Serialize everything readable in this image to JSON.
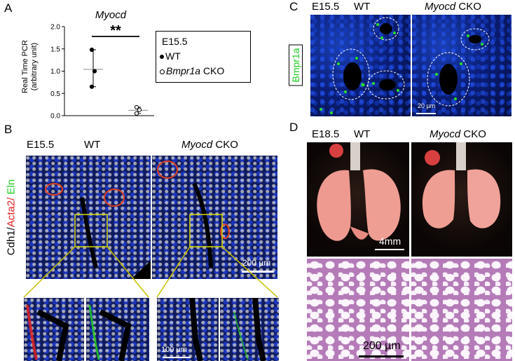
{
  "panels": {
    "A": {
      "letter": "A",
      "chart_data": {
        "type": "scatter",
        "title": "Myocd",
        "ylabel": "Real Time PCR\n(arbitrary unit)",
        "ylim": [
          0,
          2.0
        ],
        "yticks": [
          "0.0",
          "0.5",
          "1.0",
          "1.5",
          "2.0"
        ],
        "series": [
          {
            "name": "WT",
            "marker": "filled",
            "values": [
              1.48,
              1.0,
              0.65
            ],
            "mean": 1.04
          },
          {
            "name": "Bmpr1a CKO",
            "marker": "open",
            "values": [
              0.19,
              0.13,
              0.05
            ],
            "mean": 0.12
          }
        ],
        "significance": "**"
      },
      "legend": {
        "stage": "E15.5",
        "wt": "WT",
        "cko_gene": "Bmpr1a",
        "cko_suffix": " CKO"
      }
    },
    "B": {
      "letter": "B",
      "stage": "E15.5",
      "wt": "WT",
      "cko_gene": "Myocd",
      "cko_suffix": " CKO",
      "stain_cdh1": "Cdh1/",
      "stain_acta2": "Acta2/",
      "stain_eln": " Eln",
      "scale_large": "200 µm",
      "scale_small": "100 µm"
    },
    "C": {
      "letter": "C",
      "stage": "E15.5",
      "wt": "WT",
      "cko_gene": "Myocd",
      "cko_suffix": " CKO",
      "stain": "Bmpr1a",
      "scale": "20 µm"
    },
    "D": {
      "letter": "D",
      "stage": "E18.5",
      "wt": "WT",
      "cko_gene": "Myocd",
      "cko_suffix": " CKO",
      "scale_lung": "4mm",
      "scale_he": "200 µm"
    }
  },
  "colors": {
    "green": "#22cc22",
    "red": "#e02020",
    "yellow": "#d8d800",
    "blue": "#1a3fb0"
  }
}
